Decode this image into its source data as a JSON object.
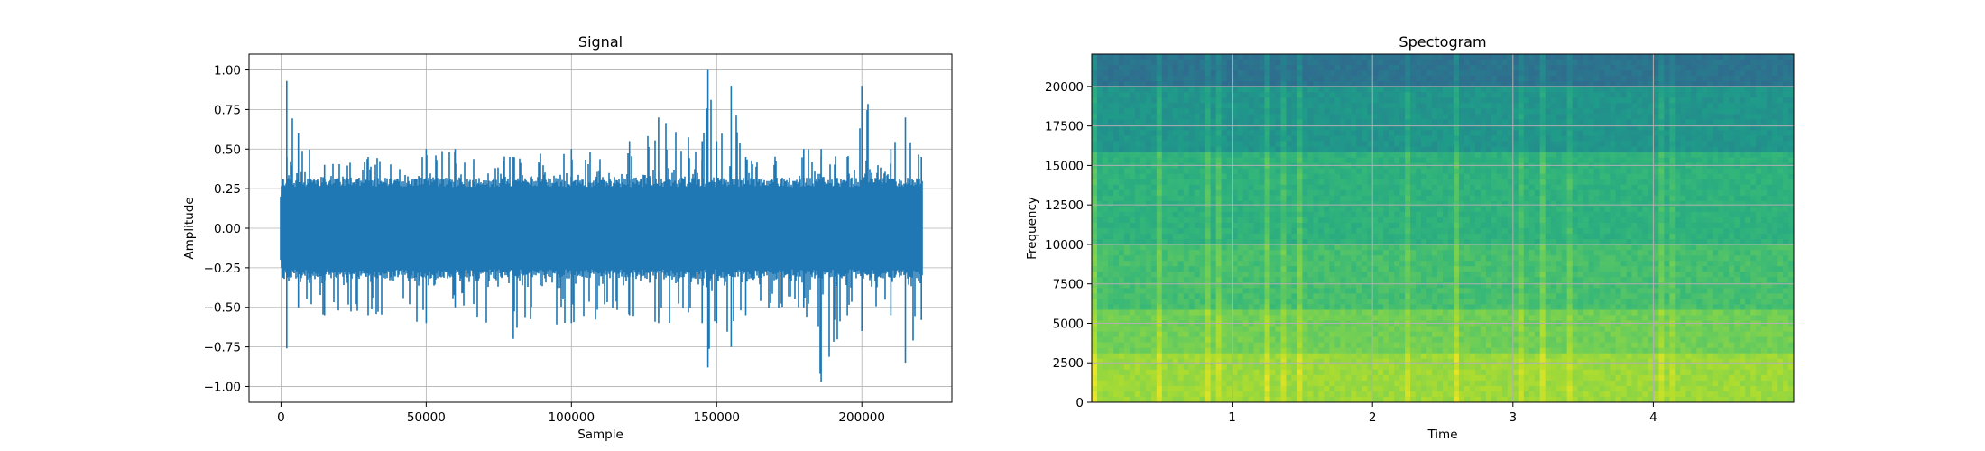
{
  "chart_data": [
    {
      "type": "line",
      "title": "Signal",
      "xlabel": "Sample",
      "ylabel": "Amplitude",
      "xlim": [
        -11000,
        231000
      ],
      "ylim": [
        -1.1,
        1.1
      ],
      "xticks": [
        0,
        50000,
        100000,
        150000,
        200000
      ],
      "xtick_labels": [
        "0",
        "50000",
        "100000",
        "150000",
        "200000"
      ],
      "yticks": [
        -1.0,
        -0.75,
        -0.5,
        -0.25,
        0.0,
        0.25,
        0.5,
        0.75,
        1.0
      ],
      "ytick_labels": [
        "−1.00",
        "−0.75",
        "−0.50",
        "−0.25",
        "0.00",
        "0.25",
        "0.50",
        "0.75",
        "1.00"
      ],
      "grid": true,
      "color": "#1f77b4",
      "series": [
        {
          "x_range": [
            0,
            220500
          ],
          "envelope": {
            "x": [
              0,
              2000,
              6000,
              15000,
              30000,
              50000,
              60000,
              80000,
              100000,
              120000,
              130000,
              145000,
              147000,
              150000,
              155000,
              160000,
              180000,
              186000,
              195000,
              200000,
              210000,
              215000,
              220500
            ],
            "upper": [
              0.2,
              0.93,
              0.6,
              0.4,
              0.45,
              0.5,
              0.5,
              0.45,
              0.5,
              0.55,
              0.7,
              0.55,
              1.0,
              0.55,
              0.9,
              0.45,
              0.5,
              0.5,
              0.45,
              0.9,
              0.5,
              0.7,
              0.45
            ],
            "lower": [
              -0.2,
              -0.76,
              -0.5,
              -0.55,
              -0.55,
              -0.6,
              -0.5,
              -0.7,
              -0.6,
              -0.55,
              -0.6,
              -0.6,
              -0.88,
              -0.6,
              -0.75,
              -0.55,
              -0.5,
              -0.97,
              -0.55,
              -0.65,
              -0.55,
              -0.85,
              -0.58
            ]
          }
        }
      ]
    },
    {
      "type": "heatmap",
      "title": "Spectogram",
      "xlabel": "Time",
      "ylabel": "Frequency",
      "xlim": [
        0,
        5.0
      ],
      "ylim": [
        0,
        22050
      ],
      "xticks": [
        1,
        2,
        3,
        4
      ],
      "xtick_labels": [
        "1",
        "2",
        "3",
        "4"
      ],
      "yticks": [
        0,
        2500,
        5000,
        7500,
        10000,
        12500,
        15000,
        17500,
        20000
      ],
      "ytick_labels": [
        "0",
        "2500",
        "5000",
        "7500",
        "10000",
        "12500",
        "15000",
        "17500",
        "20000"
      ],
      "grid": true,
      "colormap": "viridis",
      "bands": [
        {
          "f0": 0,
          "f1": 3000,
          "level": 0.85
        },
        {
          "f0": 3000,
          "f1": 6000,
          "level": 0.78
        },
        {
          "f0": 6000,
          "f1": 10000,
          "level": 0.7
        },
        {
          "f0": 10000,
          "f1": 16000,
          "level": 0.64
        },
        {
          "f0": 16000,
          "f1": 20000,
          "level": 0.52
        },
        {
          "f0": 20000,
          "f1": 22050,
          "level": 0.38
        }
      ]
    }
  ]
}
